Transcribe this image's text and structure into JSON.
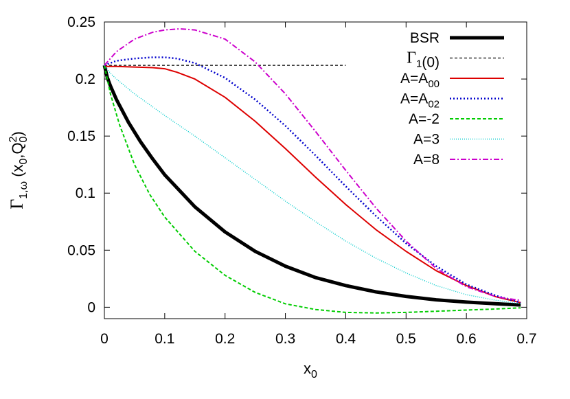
{
  "chart_data": {
    "type": "line",
    "title": "",
    "xlabel": "x",
    "xlabel_sub": "0",
    "ylabel": {
      "gamma": "Γ",
      "sub": "1,ω",
      "args_open": " (x",
      "args_sub1": "0",
      "args_mid": ",Q",
      "args_sup": "2",
      "args_sub2": "0",
      "args_close": ")"
    },
    "xlim": [
      0,
      0.7
    ],
    "ylim": [
      -0.01,
      0.25
    ],
    "xticks": [
      0,
      0.1,
      0.2,
      0.3,
      0.4,
      0.5,
      0.6,
      0.7
    ],
    "xtick_labels": [
      "0",
      "0.1",
      "0.2",
      "0.3",
      "0.4",
      "0.5",
      "0.6",
      "0.7"
    ],
    "yticks": [
      0,
      0.05,
      0.1,
      0.15,
      0.2,
      0.25
    ],
    "ytick_labels": [
      "0",
      "0.05",
      "0.1",
      "0.15",
      "0.2",
      "0.25"
    ],
    "grid": false,
    "legend_position": "top-right",
    "series": [
      {
        "name": "BSR",
        "legend_parts": [
          [
            "BSR",
            ""
          ]
        ],
        "color": "#000000",
        "width": 5,
        "dash": "",
        "x": [
          0,
          0.005,
          0.01,
          0.02,
          0.04,
          0.06,
          0.08,
          0.1,
          0.15,
          0.2,
          0.25,
          0.3,
          0.35,
          0.4,
          0.45,
          0.5,
          0.55,
          0.6,
          0.65,
          0.69
        ],
        "y": [
          0.212,
          0.201,
          0.194,
          0.182,
          0.162,
          0.145,
          0.13,
          0.116,
          0.088,
          0.066,
          0.049,
          0.036,
          0.026,
          0.019,
          0.0135,
          0.0095,
          0.0065,
          0.0045,
          0.003,
          0.002
        ]
      },
      {
        "name": "Γ1(0)",
        "legend_parts": [
          [
            "Γ",
            ""
          ],
          [
            "1",
            "sub"
          ],
          [
            "(0)",
            ""
          ]
        ],
        "color": "#000000",
        "width": 1.2,
        "dash": "4,3",
        "x": [
          0,
          0.4
        ],
        "y": [
          0.212,
          0.212
        ]
      },
      {
        "name": "A=A00",
        "legend_parts": [
          [
            "A=A",
            ""
          ],
          [
            "00",
            "sub"
          ]
        ],
        "color": "#dd0000",
        "width": 2,
        "dash": "",
        "x": [
          0,
          0.005,
          0.02,
          0.05,
          0.08,
          0.1,
          0.12,
          0.15,
          0.2,
          0.25,
          0.3,
          0.35,
          0.4,
          0.45,
          0.5,
          0.55,
          0.6,
          0.65,
          0.69
        ],
        "y": [
          0.212,
          0.211,
          0.211,
          0.2105,
          0.21,
          0.209,
          0.206,
          0.2,
          0.184,
          0.163,
          0.139,
          0.114,
          0.09,
          0.068,
          0.049,
          0.032,
          0.019,
          0.009,
          0.004
        ]
      },
      {
        "name": "A=A02",
        "legend_parts": [
          [
            "A=A",
            ""
          ],
          [
            "02",
            "sub"
          ]
        ],
        "color": "#0000cc",
        "width": 2.5,
        "dash": "2,3",
        "x": [
          0,
          0.02,
          0.05,
          0.08,
          0.1,
          0.12,
          0.15,
          0.2,
          0.25,
          0.3,
          0.35,
          0.4,
          0.45,
          0.5,
          0.55,
          0.6,
          0.65,
          0.69
        ],
        "y": [
          0.212,
          0.216,
          0.218,
          0.219,
          0.219,
          0.218,
          0.214,
          0.201,
          0.182,
          0.159,
          0.133,
          0.106,
          0.08,
          0.056,
          0.036,
          0.02,
          0.01,
          0.004
        ]
      },
      {
        "name": "A=-2",
        "legend_parts": [
          [
            "A=-2",
            ""
          ]
        ],
        "color": "#00cc00",
        "width": 2,
        "dash": "5,3",
        "x": [
          0,
          0.01,
          0.025,
          0.05,
          0.075,
          0.1,
          0.15,
          0.2,
          0.25,
          0.3,
          0.35,
          0.4,
          0.45,
          0.5,
          0.55,
          0.6,
          0.65,
          0.69
        ],
        "y": [
          0.212,
          0.187,
          0.16,
          0.125,
          0.099,
          0.079,
          0.049,
          0.028,
          0.013,
          0.003,
          -0.002,
          -0.0045,
          -0.005,
          -0.0045,
          -0.0035,
          -0.0025,
          -0.0015,
          -0.0005
        ]
      },
      {
        "name": "A=3",
        "legend_parts": [
          [
            "A=3",
            ""
          ]
        ],
        "color": "#00cccc",
        "width": 1.5,
        "dash": "1,2",
        "x": [
          0,
          0.01,
          0.02,
          0.05,
          0.1,
          0.15,
          0.2,
          0.25,
          0.3,
          0.35,
          0.4,
          0.45,
          0.5,
          0.55,
          0.6,
          0.65,
          0.69
        ],
        "y": [
          0.212,
          0.205,
          0.2,
          0.187,
          0.168,
          0.15,
          0.131,
          0.112,
          0.093,
          0.075,
          0.058,
          0.043,
          0.03,
          0.019,
          0.011,
          0.006,
          0.003
        ]
      },
      {
        "name": "A=8",
        "legend_parts": [
          [
            "A=8",
            ""
          ]
        ],
        "color": "#cc00cc",
        "width": 2,
        "dash": "8,3,2,3",
        "x": [
          0,
          0.02,
          0.05,
          0.08,
          0.1,
          0.125,
          0.15,
          0.2,
          0.25,
          0.3,
          0.35,
          0.4,
          0.45,
          0.5,
          0.55,
          0.6,
          0.65,
          0.69
        ],
        "y": [
          0.212,
          0.224,
          0.235,
          0.241,
          0.243,
          0.244,
          0.243,
          0.235,
          0.215,
          0.187,
          0.154,
          0.12,
          0.087,
          0.058,
          0.034,
          0.018,
          0.009,
          0.006
        ]
      }
    ]
  }
}
